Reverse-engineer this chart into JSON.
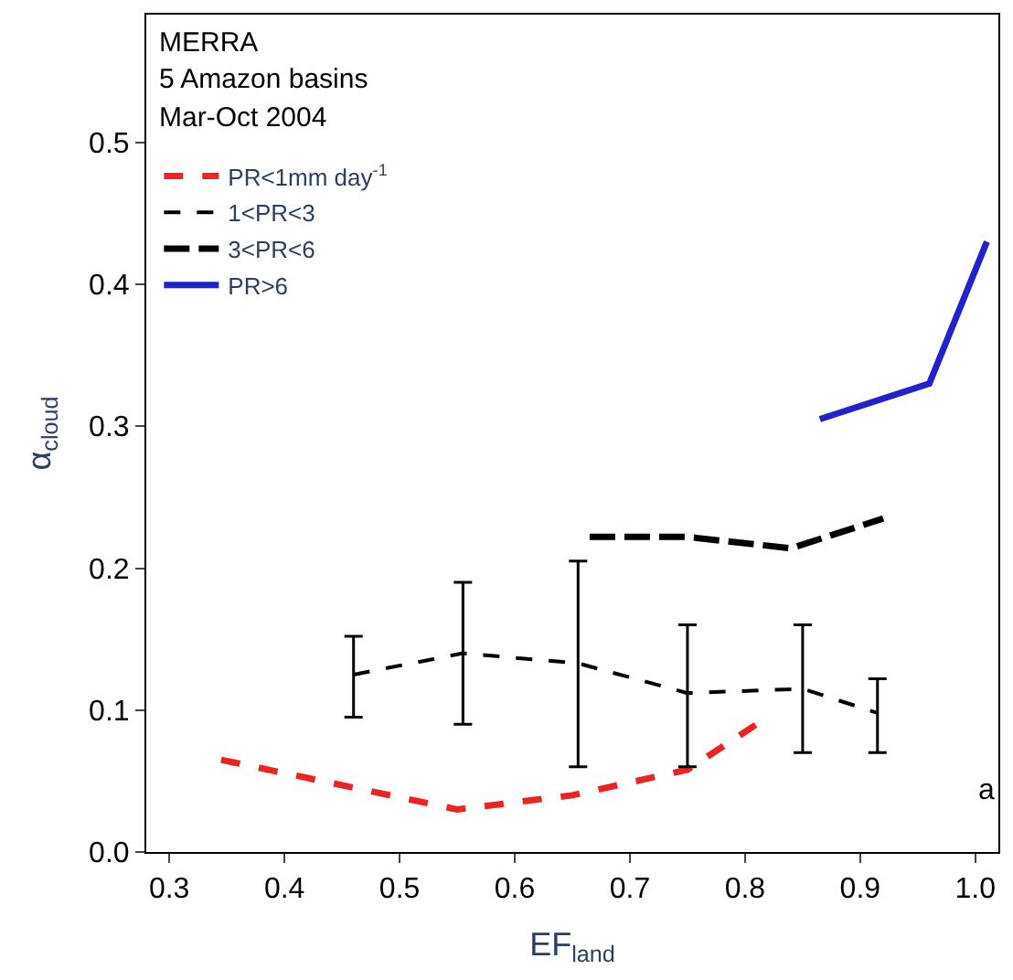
{
  "chart_data": {
    "type": "line",
    "xlabel": "EF$_{land}$",
    "ylabel": "α$_{cloud}$",
    "annotations": [
      "MERRA",
      "5 Amazon basins",
      "Mar-Oct 2004",
      "a"
    ],
    "xlim": [
      0.28,
      1.02
    ],
    "xticks": [
      0.3,
      0.4,
      0.5,
      0.6,
      0.7,
      0.8,
      0.9,
      {
        "value": 1.0,
        "label": "1.0"
      }
    ],
    "ylim": [
      0,
      0.59
    ],
    "yticks": [
      {
        "value": 0,
        "label": "0.0"
      },
      0.1,
      0.2,
      0.3,
      0.4,
      0.5
    ],
    "marker": "none",
    "legend": "top left",
    "series": [
      {
        "name": "PR<1mm day$^{-1}$",
        "color": "#ee2222",
        "line_style": "dashed",
        "x": [
          0.345,
          0.55,
          0.65,
          0.75,
          0.81
        ],
        "values": [
          0.065,
          0.03,
          0.04,
          0.058,
          0.09
        ]
      },
      {
        "name": "1<PR<3",
        "color": "#000000",
        "line_style": "dashed",
        "x": [
          0.46,
          0.555,
          0.655,
          0.75,
          0.85,
          0.915
        ],
        "values": [
          0.125,
          0.14,
          0.133,
          0.112,
          0.115,
          0.098
        ],
        "errors": [
          [
            0.095,
            0.152
          ],
          [
            0.09,
            0.19
          ],
          [
            0.06,
            0.205
          ],
          [
            0.06,
            0.16
          ],
          [
            0.07,
            0.16
          ],
          [
            0.07,
            0.122
          ]
        ]
      },
      {
        "name": "3<PR<6",
        "color": "#000000",
        "line_style": "dashed",
        "x": [
          0.665,
          0.75,
          0.84,
          0.92
        ],
        "values": [
          0.222,
          0.222,
          0.214,
          0.235
        ]
      },
      {
        "name": "PR>6",
        "color": "#2222cc",
        "line_style": "solid",
        "x": [
          0.865,
          0.96,
          1.01
        ],
        "values": [
          0.305,
          0.33,
          0.43
        ]
      }
    ]
  }
}
